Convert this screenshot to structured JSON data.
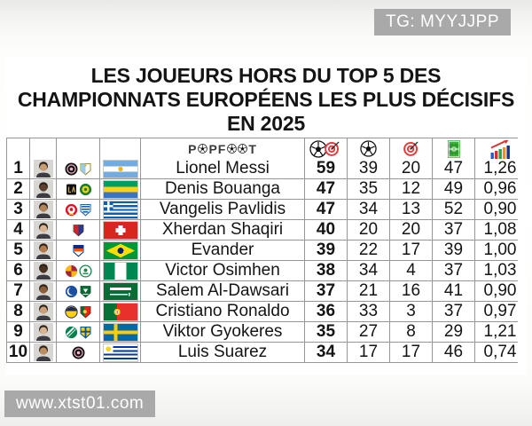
{
  "watermarks": {
    "telegram": "TG: MYYJJPP",
    "website": "www.xtst01.com"
  },
  "title": {
    "line1": "LES JOUEURS HORS DU TOP 5 DES",
    "line2": "CHAMPIONNATS EUROPÉENS LES PLUS DÉCISIFS",
    "line3": "EN 2025"
  },
  "brand": {
    "name": "POPFOOT",
    "part1": "P",
    "part2": "PF",
    "part3": "T"
  },
  "colors": {
    "watermark_bg": "#a9a9a9",
    "watermark_text": "#ffffff",
    "grid_line": "#969696",
    "text": "#141414",
    "target_red": "#e03a3a",
    "pitch_green": "#33a033"
  },
  "chart_data": {
    "type": "table",
    "title": "LES JOUEURS HORS DU TOP 5 DES CHAMPIONNATS EUROPÉENS LES PLUS DÉCISIFS EN 2025",
    "columns": [
      "rank",
      "photo",
      "clubs",
      "flag",
      "player",
      "goal_contributions",
      "goals",
      "assists",
      "matches",
      "ratio"
    ],
    "header_icons": [
      "ball-target-icon",
      "ball-icon",
      "target-icon",
      "pitch-icon",
      "bar-chart-icon"
    ],
    "rows": [
      {
        "rank": "1",
        "name": "Lionel Messi",
        "clubs": [
          "inter-miami",
          "afa-argentina"
        ],
        "flag": "argentina",
        "goal_contributions": "59",
        "goals": "39",
        "assists": "20",
        "matches": "47",
        "ratio": "1,26"
      },
      {
        "rank": "2",
        "name": "Denis Bouanga",
        "clubs": [
          "lafc",
          "bouenguidi"
        ],
        "flag": "gabon",
        "goal_contributions": "47",
        "goals": "35",
        "assists": "12",
        "matches": "49",
        "ratio": "0,96"
      },
      {
        "rank": "3",
        "name": "Vangelis Pavlidis",
        "clubs": [
          "benfica",
          "greece-federation"
        ],
        "flag": "greece",
        "goal_contributions": "47",
        "goals": "34",
        "assists": "13",
        "matches": "52",
        "ratio": "0,90"
      },
      {
        "rank": "4",
        "name": "Xherdan Shaqiri",
        "clubs": [
          "basel"
        ],
        "flag": "switzerland",
        "goal_contributions": "40",
        "goals": "20",
        "assists": "20",
        "matches": "37",
        "ratio": "1,08"
      },
      {
        "rank": "5",
        "name": "Evander",
        "clubs": [
          "cincinnati"
        ],
        "flag": "brazil",
        "goal_contributions": "39",
        "goals": "22",
        "assists": "17",
        "matches": "39",
        "ratio": "1,00"
      },
      {
        "rank": "6",
        "name": "Victor Osimhen",
        "clubs": [
          "galatasaray",
          "nigeria-federation"
        ],
        "flag": "nigeria",
        "goal_contributions": "38",
        "goals": "34",
        "assists": "4",
        "matches": "37",
        "ratio": "1,03"
      },
      {
        "rank": "7",
        "name": "Salem Al-Dawsari",
        "clubs": [
          "al-hilal",
          "saudi-federation"
        ],
        "flag": "saudi-arabia",
        "goal_contributions": "37",
        "goals": "21",
        "assists": "16",
        "matches": "41",
        "ratio": "0,90"
      },
      {
        "rank": "8",
        "name": "Cristiano Ronaldo",
        "clubs": [
          "al-nassr",
          "portugal-federation"
        ],
        "flag": "portugal",
        "goal_contributions": "36",
        "goals": "33",
        "assists": "3",
        "matches": "37",
        "ratio": "0,97"
      },
      {
        "rank": "9",
        "name": "Viktor Gyokeres",
        "clubs": [
          "sporting-cp",
          "sweden-federation"
        ],
        "flag": "sweden",
        "goal_contributions": "35",
        "goals": "27",
        "assists": "8",
        "matches": "29",
        "ratio": "1,21"
      },
      {
        "rank": "10",
        "name": "Luis Suarez",
        "clubs": [
          "inter-miami"
        ],
        "flag": "uruguay",
        "goal_contributions": "34",
        "goals": "17",
        "assists": "17",
        "matches": "46",
        "ratio": "0,74"
      }
    ]
  }
}
